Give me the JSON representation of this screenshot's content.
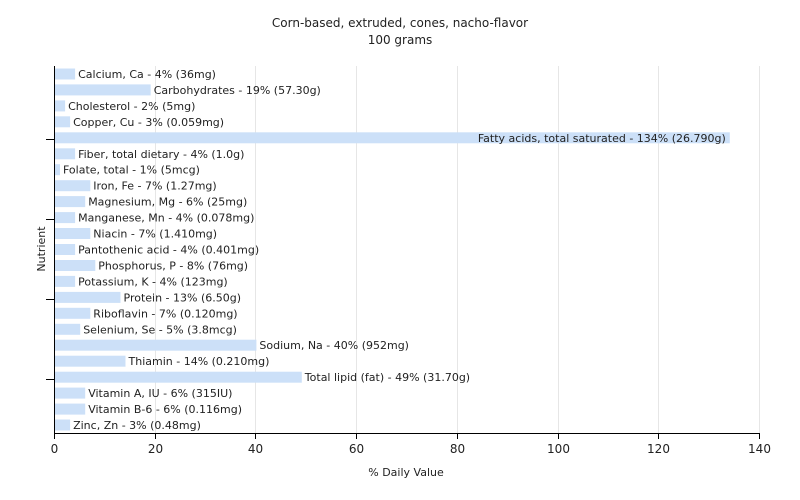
{
  "chart_data": {
    "type": "bar",
    "orientation": "horizontal",
    "title": "Corn-based, extruded, cones, nacho-flavor",
    "subtitle": "100 grams",
    "xlabel": "% Daily Value",
    "ylabel": "Nutrient",
    "xlim": [
      0,
      140
    ],
    "xticks": [
      0,
      20,
      40,
      60,
      80,
      100,
      120,
      140
    ],
    "grid": true,
    "bar_color": "#cce0f8",
    "categories": [
      "Calcium, Ca",
      "Carbohydrates",
      "Cholesterol",
      "Copper, Cu",
      "Fatty acids, total saturated",
      "Fiber, total dietary",
      "Folate, total",
      "Iron, Fe",
      "Magnesium, Mg",
      "Manganese, Mn",
      "Niacin",
      "Pantothenic acid",
      "Phosphorus, P",
      "Potassium, K",
      "Protein",
      "Riboflavin",
      "Selenium, Se",
      "Sodium, Na",
      "Thiamin",
      "Total lipid (fat)",
      "Vitamin A, IU",
      "Vitamin B-6",
      "Zinc, Zn"
    ],
    "values": [
      4,
      19,
      2,
      3,
      134,
      4,
      1,
      7,
      6,
      4,
      7,
      4,
      8,
      4,
      13,
      7,
      5,
      40,
      14,
      49,
      6,
      6,
      3
    ],
    "labels": [
      "Calcium, Ca - 4% (36mg)",
      "Carbohydrates - 19% (57.30g)",
      "Cholesterol - 2% (5mg)",
      "Copper, Cu - 3% (0.059mg)",
      "Fatty acids, total saturated - 134% (26.790g)",
      "Fiber, total dietary - 4% (1.0g)",
      "Folate, total - 1% (5mcg)",
      "Iron, Fe - 7% (1.27mg)",
      "Magnesium, Mg - 6% (25mg)",
      "Manganese, Mn - 4% (0.078mg)",
      "Niacin - 7% (1.410mg)",
      "Pantothenic acid - 4% (0.401mg)",
      "Phosphorus, P - 8% (76mg)",
      "Potassium, K - 4% (123mg)",
      "Protein - 13% (6.50g)",
      "Riboflavin - 7% (0.120mg)",
      "Selenium, Se - 5% (3.8mcg)",
      "Sodium, Na - 40% (952mg)",
      "Thiamin - 14% (0.210mg)",
      "Total lipid (fat) - 49% (31.70g)",
      "Vitamin A, IU - 6% (315IU)",
      "Vitamin B-6 - 6% (0.116mg)",
      "Zinc, Zn - 3% (0.48mg)"
    ]
  }
}
